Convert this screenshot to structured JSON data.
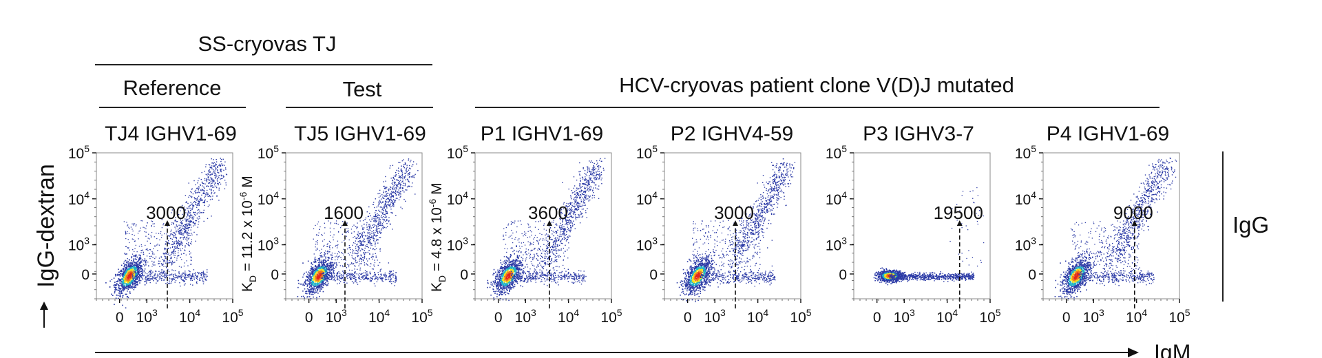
{
  "headers": {
    "group1": "SS-cryovas TJ",
    "reference": "Reference",
    "test": "Test",
    "group2": "HCV-cryovas patient clone V(D)J mutated"
  },
  "axes": {
    "ylabel": "IgG-dextran",
    "xlabel": "IgM",
    "right_label": "IgG",
    "x_ticks": [
      "0",
      "10^3",
      "10^4",
      "10^5"
    ],
    "y_ticks": [
      "0",
      "10^3",
      "10^4",
      "10^5"
    ]
  },
  "colors": {
    "low_density": "#2b3aa6",
    "mid_density": "#1fb2c9",
    "high_density_1": "#f2e21f",
    "high_density_2": "#f07b1f",
    "peak": "#e3261d"
  },
  "chart_data": [
    {
      "type": "scatter",
      "title": "TJ4 IGHV1-69",
      "value_label": "3000",
      "threshold_x": 3000,
      "kd_label": "11.2 x 10",
      "kd_exp": "-6",
      "kd_unit": "M",
      "xscale": "biexponential",
      "yscale": "biexponential",
      "xlim": [
        -300,
        100000
      ],
      "ylim": [
        -300,
        100000
      ]
    },
    {
      "type": "scatter",
      "title": "TJ5 IGHV1-69",
      "value_label": "1600",
      "threshold_x": 1600,
      "kd_label": "4.8 x 10",
      "kd_exp": "-6",
      "kd_unit": "M",
      "xscale": "biexponential",
      "yscale": "biexponential",
      "xlim": [
        -300,
        100000
      ],
      "ylim": [
        -300,
        100000
      ]
    },
    {
      "type": "scatter",
      "title": "P1 IGHV1-69",
      "value_label": "3600",
      "threshold_x": 3600,
      "xscale": "biexponential",
      "yscale": "biexponential",
      "xlim": [
        -300,
        100000
      ],
      "ylim": [
        -300,
        100000
      ]
    },
    {
      "type": "scatter",
      "title": "P2 IGHV4-59",
      "value_label": "3000",
      "threshold_x": 3000,
      "xscale": "biexponential",
      "yscale": "biexponential",
      "xlim": [
        -300,
        100000
      ],
      "ylim": [
        -300,
        100000
      ]
    },
    {
      "type": "scatter",
      "title": "P3 IGHV3-7",
      "value_label": "19500",
      "threshold_x": 19500,
      "xscale": "biexponential",
      "yscale": "biexponential",
      "xlim": [
        -300,
        100000
      ],
      "ylim": [
        -300,
        100000
      ]
    },
    {
      "type": "scatter",
      "title": "P4 IGHV1-69",
      "value_label": "9000",
      "threshold_x": 9000,
      "xscale": "biexponential",
      "yscale": "biexponential",
      "xlim": [
        -300,
        100000
      ],
      "ylim": [
        -300,
        100000
      ]
    }
  ]
}
